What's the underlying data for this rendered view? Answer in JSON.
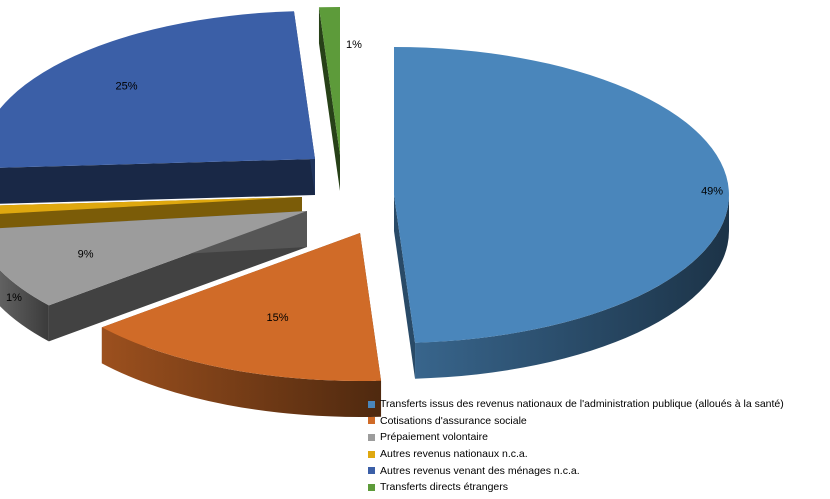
{
  "chart_data": {
    "type": "pie",
    "style": "3d-exploded",
    "title": "",
    "legend_position": "bottom-right",
    "series": [
      {
        "name": "Transferts issus des revenus nationaux de l'administration publique (alloués à la santé)",
        "value": 49,
        "label": "49%",
        "color": "#4a86bb"
      },
      {
        "name": "Cotisations d'assurance sociale",
        "value": 15,
        "label": "15%",
        "color": "#d06b28"
      },
      {
        "name": "Prépaiement volontaire",
        "value": 9,
        "label": "9%",
        "color": "#9c9c9c"
      },
      {
        "name": "Autres revenus nationaux n.c.a.",
        "value": 1,
        "label": "1%",
        "color": "#dfa80f"
      },
      {
        "name": "Autres revenus venant des ménages n.c.a.",
        "value": 25,
        "label": "25%",
        "color": "#3b5fa7"
      },
      {
        "name": "Transferts directs étrangers",
        "value": 1,
        "label": "1%",
        "color": "#5d9b3a"
      }
    ]
  }
}
